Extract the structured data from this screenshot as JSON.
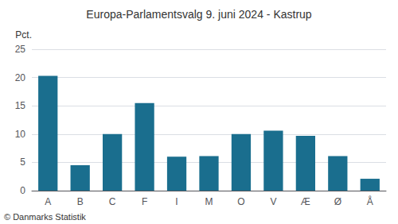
{
  "chart_data": {
    "type": "bar",
    "title": "Europa-Parlamentsvalg 9. juni 2024 - Kastrup",
    "categories": [
      "A",
      "B",
      "C",
      "F",
      "I",
      "M",
      "O",
      "V",
      "Æ",
      "Ø",
      "Å"
    ],
    "values": [
      20.3,
      4.5,
      10.0,
      15.5,
      6.0,
      6.1,
      10.0,
      10.6,
      9.7,
      6.1,
      2.1
    ],
    "color": "#1a6e8e",
    "ylabel": "Pct.",
    "footer": "© Danmarks Statistik",
    "ylim": [
      0,
      25
    ],
    "yticks": [
      0,
      5,
      10,
      15,
      20,
      25
    ],
    "grid": true
  }
}
